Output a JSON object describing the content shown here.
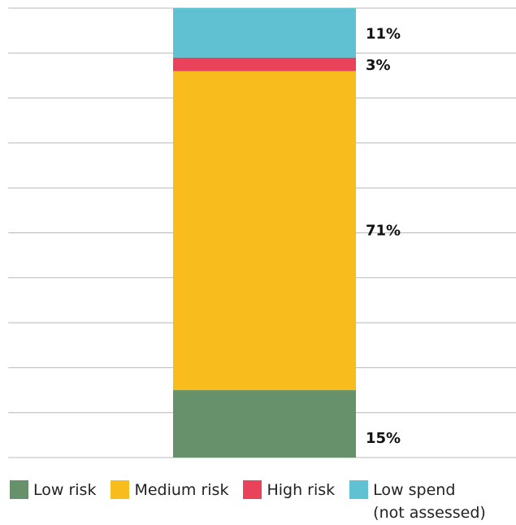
{
  "chart_data": {
    "type": "bar",
    "stacked": true,
    "title": "",
    "xlabel": "",
    "ylabel": "",
    "ylim": [
      0,
      100
    ],
    "grid": true,
    "legend_position": "bottom",
    "categories": [
      ""
    ],
    "series": [
      {
        "name": "Low risk",
        "values": [
          15
        ],
        "label": "15%",
        "color": "#66916a"
      },
      {
        "name": "Medium risk",
        "values": [
          71
        ],
        "label": "71%",
        "color": "#f8bd1c"
      },
      {
        "name": "High risk",
        "values": [
          3
        ],
        "label": "3%",
        "color": "#e8435a"
      },
      {
        "name": "Low spend\n(not assessed)",
        "values": [
          11
        ],
        "label": "11%",
        "color": "#5fc1d2"
      }
    ],
    "gridline_color": "#b9b9b9"
  }
}
